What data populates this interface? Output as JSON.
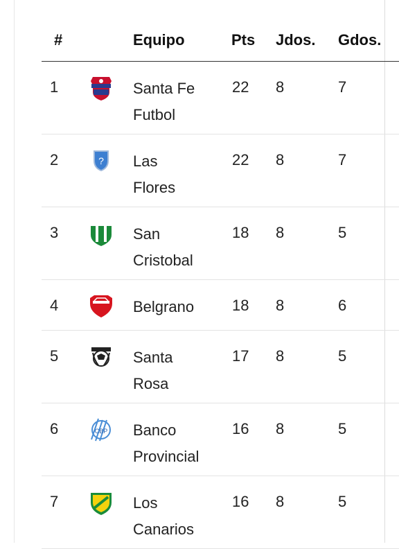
{
  "header": {
    "pos": "#",
    "team": "Equipo",
    "pts": "Pts",
    "played": "Jdos.",
    "won": "Gdos."
  },
  "rows": [
    {
      "pos": "1",
      "team_line1": "Santa Fe",
      "team_line2": "Futbol",
      "pts": "22",
      "played": "8",
      "won": "7",
      "logo_icon": "santa-fe-futbol-crest-icon"
    },
    {
      "pos": "2",
      "team_line1": "Las",
      "team_line2": "Flores",
      "pts": "22",
      "played": "8",
      "won": "7",
      "logo_icon": "placeholder-shield-icon"
    },
    {
      "pos": "3",
      "team_line1": "San",
      "team_line2": "Cristobal",
      "pts": "18",
      "played": "8",
      "won": "5",
      "logo_icon": "san-cristobal-crest-icon"
    },
    {
      "pos": "4",
      "team_line1": "Belgrano",
      "team_line2": "",
      "pts": "18",
      "played": "8",
      "won": "6",
      "logo_icon": "belgrano-crest-icon"
    },
    {
      "pos": "5",
      "team_line1": "Santa",
      "team_line2": "Rosa",
      "pts": "17",
      "played": "8",
      "won": "5",
      "logo_icon": "santa-rosa-crest-icon"
    },
    {
      "pos": "6",
      "team_line1": "Banco",
      "team_line2": "Provincial",
      "pts": "16",
      "played": "8",
      "won": "5",
      "logo_icon": "banco-provincial-crest-icon"
    },
    {
      "pos": "7",
      "team_line1": "Los",
      "team_line2": "Canarios",
      "pts": "16",
      "played": "8",
      "won": "5",
      "logo_icon": "los-canarios-crest-icon"
    }
  ]
}
